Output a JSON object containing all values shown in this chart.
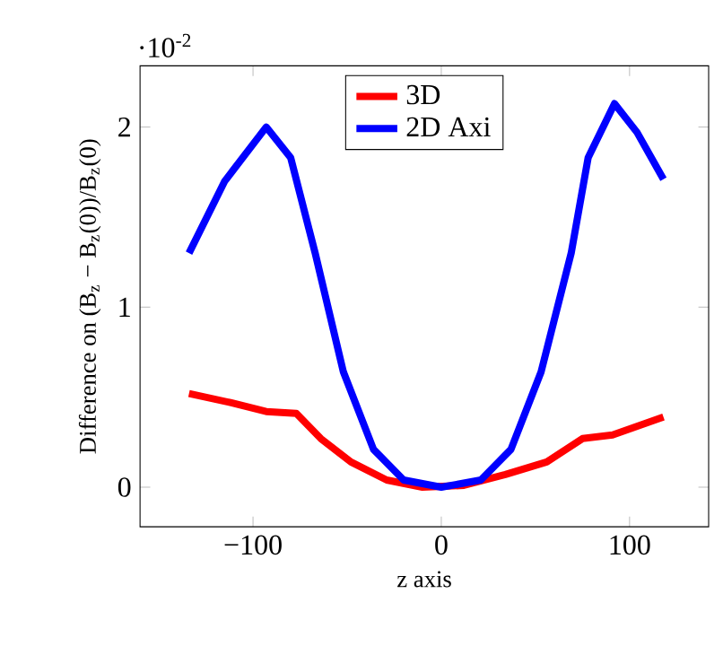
{
  "chart_data": {
    "type": "line",
    "xlabel": "z axis",
    "ylabel": "Difference on (B$_{z}$ − B$_{z}$(0))/B$_{z}$(0)",
    "annotations": [
      "·10$^{-2}$"
    ],
    "xlim": [
      -160,
      142
    ],
    "ylim": [
      -0.22,
      2.34
    ],
    "xticks": [
      {
        "value": -100,
        "label": "−100"
      },
      0,
      100
    ],
    "yticks": [
      0,
      1,
      2
    ],
    "legend": "top",
    "marker": "none",
    "line_style": "solid",
    "series": [
      {
        "name": "3D",
        "color": "#ff0000",
        "x": [
          -134,
          -112,
          -93,
          -77,
          -64,
          -48,
          -29,
          -10,
          12,
          34,
          56,
          75,
          91,
          118
        ],
        "values": [
          0.52,
          0.47,
          0.42,
          0.41,
          0.27,
          0.14,
          0.04,
          0.0,
          0.01,
          0.07,
          0.14,
          0.27,
          0.29,
          0.39
        ]
      },
      {
        "name": "2D Axi",
        "color": "#0000ff",
        "x": [
          -134,
          -115,
          -93,
          -80,
          -67,
          -52,
          -36,
          -20,
          0,
          21,
          37,
          53,
          69,
          78,
          92,
          104,
          118
        ],
        "values": [
          1.3,
          1.7,
          2.0,
          1.83,
          1.3,
          0.64,
          0.21,
          0.04,
          0.0,
          0.04,
          0.21,
          0.64,
          1.3,
          1.83,
          2.13,
          1.97,
          1.71
        ]
      }
    ]
  }
}
